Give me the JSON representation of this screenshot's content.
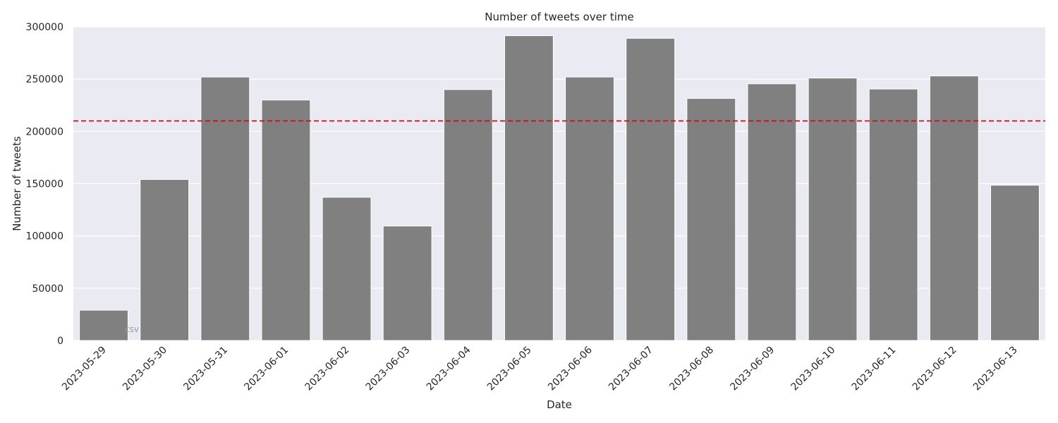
{
  "chart_data": {
    "type": "bar",
    "title": "Number of tweets over time",
    "xlabel": "Date",
    "ylabel": "Number of tweets",
    "categories": [
      "2023-05-29",
      "2023-05-30",
      "2023-05-31",
      "2023-06-01",
      "2023-06-02",
      "2023-06-03",
      "2023-06-04",
      "2023-06-05",
      "2023-06-06",
      "2023-06-07",
      "2023-06-08",
      "2023-06-09",
      "2023-06-10",
      "2023-06-11",
      "2023-06-12",
      "2023-06-13"
    ],
    "values": [
      29000,
      154000,
      252000,
      230000,
      137000,
      109500,
      240000,
      291500,
      252000,
      289000,
      231500,
      245500,
      251000,
      240500,
      253000,
      148500
    ],
    "ylim": [
      0,
      300000
    ],
    "yticks": [
      0,
      50000,
      100000,
      150000,
      200000,
      250000,
      300000
    ],
    "reference_line": {
      "value": 210000,
      "color": "#e8000b",
      "style": "dashed"
    },
    "grid": true,
    "colors": {
      "bar": "#808080",
      "background": "#eaeaf2",
      "grid": "#ffffff"
    },
    "watermark": "csv"
  }
}
